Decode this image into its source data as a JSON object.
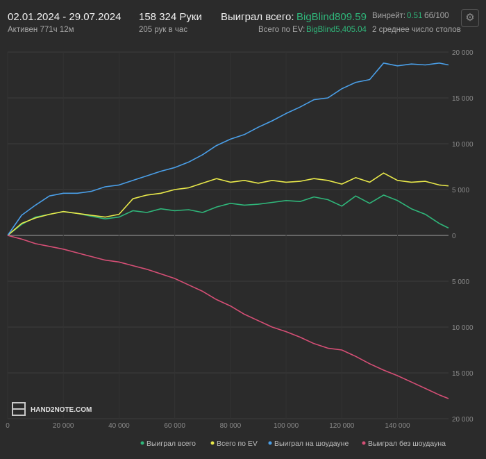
{
  "header": {
    "date_range": "02.01.2024 - 29.07.2024",
    "active": "Активен 771ч 12м",
    "hands": "158 324 Руки",
    "hands_per_hour": "205 рук в час",
    "won_total_label": "Выиграл всего:",
    "won_total_value": "BigBlind809.59",
    "ev_total_label": "Всего по EV:",
    "ev_total_value": "BigBlind5,405.04",
    "winrate_label": "Винрейт:",
    "winrate_value": "0.51",
    "winrate_unit": "бб/100",
    "tables_avg": "2 среднее число столов",
    "gear_icon": "gear-icon"
  },
  "logo": {
    "text": "HAND2NOTE.COM"
  },
  "chart_data": {
    "type": "line",
    "xlim": [
      0,
      158324
    ],
    "ylim": [
      -20000,
      20000
    ],
    "x_ticks": [
      0,
      20000,
      40000,
      60000,
      80000,
      100000,
      120000,
      140000
    ],
    "x_tick_labels": [
      "0",
      "20 000",
      "40 000",
      "60 000",
      "80 000",
      "100 000",
      "120 000",
      "140 000"
    ],
    "y_ticks": [
      20000,
      15000,
      10000,
      5000,
      0,
      -5000,
      -10000,
      -15000,
      -20000
    ],
    "y_tick_labels": [
      "20 000",
      "15 000",
      "10 000",
      "5 000",
      "0",
      "5 000",
      "10 000",
      "15 000",
      "20 000"
    ],
    "grid": true,
    "legend_position": "bottom-right",
    "series": [
      {
        "name": "Выиграл всего",
        "color": "#2fb67a",
        "x": [
          0,
          5000,
          10000,
          15000,
          20000,
          25000,
          30000,
          35000,
          40000,
          45000,
          50000,
          55000,
          60000,
          65000,
          70000,
          75000,
          80000,
          85000,
          90000,
          95000,
          100000,
          105000,
          110000,
          115000,
          120000,
          125000,
          130000,
          135000,
          140000,
          145000,
          150000,
          155000,
          158324
        ],
        "y": [
          0,
          1200,
          2000,
          2300,
          2600,
          2400,
          2100,
          1800,
          2000,
          2700,
          2500,
          2900,
          2700,
          2800,
          2500,
          3100,
          3500,
          3300,
          3400,
          3600,
          3800,
          3700,
          4200,
          3900,
          3200,
          4300,
          3500,
          4400,
          3800,
          2900,
          2300,
          1300,
          800
        ]
      },
      {
        "name": "Всего по EV",
        "color": "#e8e84a",
        "x": [
          0,
          5000,
          10000,
          15000,
          20000,
          25000,
          30000,
          35000,
          40000,
          45000,
          50000,
          55000,
          60000,
          65000,
          70000,
          75000,
          80000,
          85000,
          90000,
          95000,
          100000,
          105000,
          110000,
          115000,
          120000,
          125000,
          130000,
          135000,
          140000,
          145000,
          150000,
          155000,
          158324
        ],
        "y": [
          0,
          1300,
          1900,
          2300,
          2600,
          2400,
          2200,
          2000,
          2300,
          4000,
          4400,
          4600,
          5000,
          5200,
          5700,
          6200,
          5800,
          6000,
          5700,
          6000,
          5800,
          5900,
          6200,
          6000,
          5600,
          6300,
          5800,
          6800,
          6000,
          5800,
          5900,
          5500,
          5400
        ]
      },
      {
        "name": "Выиграл на шоудауне",
        "color": "#4a9fe8",
        "x": [
          0,
          5000,
          10000,
          15000,
          20000,
          25000,
          30000,
          35000,
          40000,
          45000,
          50000,
          55000,
          60000,
          65000,
          70000,
          75000,
          80000,
          85000,
          90000,
          95000,
          100000,
          105000,
          110000,
          115000,
          120000,
          125000,
          130000,
          135000,
          140000,
          145000,
          150000,
          155000,
          158324
        ],
        "y": [
          0,
          2200,
          3300,
          4300,
          4600,
          4600,
          4800,
          5300,
          5500,
          6000,
          6500,
          7000,
          7400,
          8000,
          8800,
          9800,
          10500,
          11000,
          11800,
          12500,
          13300,
          14000,
          14800,
          15000,
          16000,
          16700,
          17000,
          18800,
          18500,
          18700,
          18600,
          18800,
          18600
        ]
      },
      {
        "name": "Выиграл без шоудауна",
        "color": "#d64f76",
        "x": [
          0,
          5000,
          10000,
          15000,
          20000,
          25000,
          30000,
          35000,
          40000,
          45000,
          50000,
          55000,
          60000,
          65000,
          70000,
          75000,
          80000,
          85000,
          90000,
          95000,
          100000,
          105000,
          110000,
          115000,
          120000,
          125000,
          130000,
          135000,
          140000,
          145000,
          150000,
          155000,
          158324
        ],
        "y": [
          0,
          -400,
          -900,
          -1200,
          -1500,
          -1900,
          -2300,
          -2700,
          -2900,
          -3300,
          -3700,
          -4200,
          -4700,
          -5400,
          -6100,
          -7000,
          -7700,
          -8600,
          -9300,
          -10000,
          -10500,
          -11100,
          -11800,
          -12300,
          -12500,
          -13200,
          -14000,
          -14700,
          -15300,
          -16000,
          -16700,
          -17400,
          -17800
        ]
      }
    ]
  }
}
